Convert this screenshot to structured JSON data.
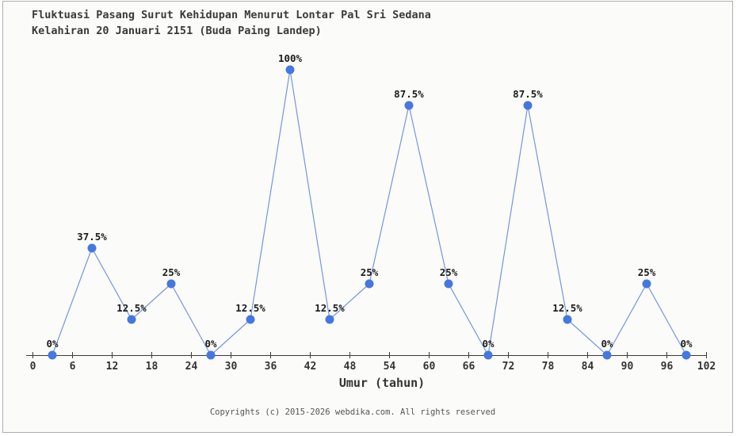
{
  "page": {
    "background": "#fbfbf9",
    "border_color": "#aeaeae"
  },
  "title": {
    "line1": "Fluktuasi Pasang Surut Kehidupan Menurut Lontar Pal Sri Sedana",
    "line2": "Kelahiran 20 Januari 2151 (Buda Paing Landep)"
  },
  "footer": {
    "copyright": "Copyrights (c) 2015-2026 webdika.com. All rights reserved"
  },
  "chart_data": {
    "type": "line",
    "x": [
      3,
      9,
      15,
      21,
      27,
      33,
      39,
      45,
      51,
      57,
      63,
      69,
      75,
      81,
      87,
      93,
      99
    ],
    "values": [
      0,
      37.5,
      12.5,
      25,
      0,
      12.5,
      100,
      12.5,
      25,
      87.5,
      25,
      0,
      87.5,
      12.5,
      0,
      25,
      0
    ],
    "point_labels": [
      "0%",
      "37.5%",
      "12.5%",
      "25%",
      "0%",
      "12.5%",
      "100%",
      "12.5%",
      "25%",
      "87.5%",
      "25%",
      "0%",
      "87.5%",
      "12.5%",
      "0%",
      "25%",
      "0%"
    ],
    "xlabel": "Umur (tahun)",
    "x_ticks": [
      0,
      6,
      12,
      18,
      24,
      30,
      36,
      42,
      48,
      54,
      60,
      66,
      72,
      78,
      84,
      90,
      96,
      102
    ],
    "xlim": [
      0,
      102
    ],
    "ylim": [
      0,
      100
    ],
    "grid": false,
    "legend": "none",
    "marker_radius": 5.5,
    "colors": {
      "line": "#7397dd",
      "marker": "#4478e0",
      "axis": "#3a3a3a",
      "tick_label": "#333333",
      "point_label": "#1b1b1b"
    }
  }
}
